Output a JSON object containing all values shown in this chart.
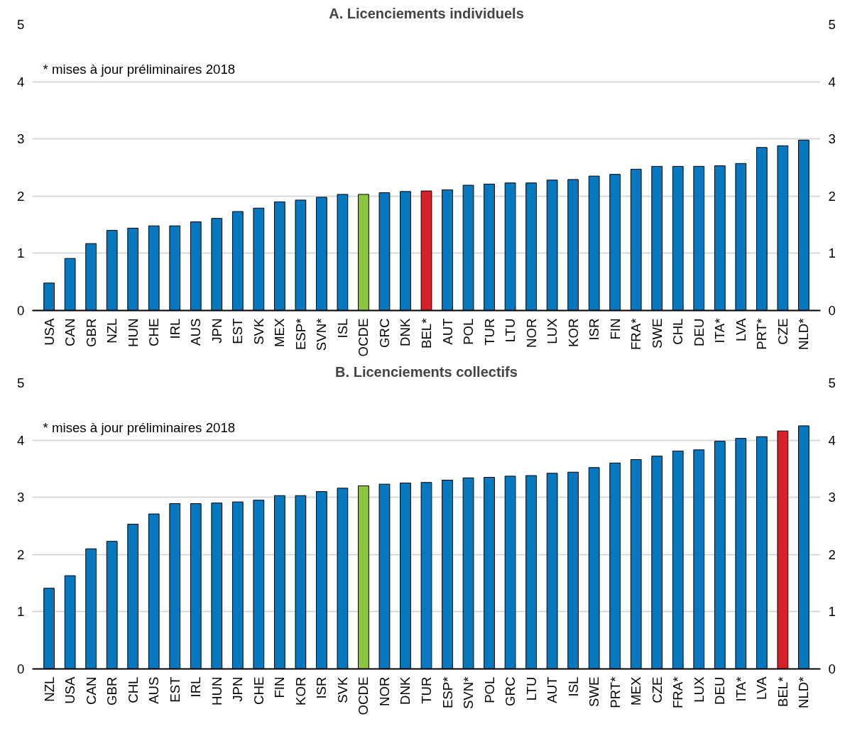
{
  "chart_data": [
    {
      "type": "bar",
      "title": "A. Licenciements individuels",
      "annotations": [
        "* mises à jour préliminaires 2018"
      ],
      "categories": [
        "USA",
        "CAN",
        "GBR",
        "NZL",
        "HUN",
        "CHE",
        "IRL",
        "AUS",
        "JPN",
        "EST",
        "SVK",
        "MEX",
        "ESP*",
        "SVN*",
        "ISL",
        "OCDE",
        "GRC",
        "DNK",
        "BEL*",
        "AUT",
        "POL",
        "TUR",
        "LTU",
        "NOR",
        "LUX",
        "KOR",
        "ISR",
        "FIN",
        "FRA*",
        "SWE",
        "CHL",
        "DEU",
        "ITA*",
        "LVA",
        "PRT*",
        "CZE",
        "NLD*"
      ],
      "values": [
        0.48,
        0.91,
        1.17,
        1.4,
        1.44,
        1.48,
        1.48,
        1.55,
        1.61,
        1.73,
        1.79,
        1.9,
        1.93,
        1.98,
        2.03,
        2.03,
        2.06,
        2.08,
        2.09,
        2.11,
        2.19,
        2.21,
        2.23,
        2.23,
        2.28,
        2.29,
        2.35,
        2.38,
        2.47,
        2.52,
        2.52,
        2.52,
        2.53,
        2.57,
        2.85,
        2.88,
        2.98
      ],
      "colors": [
        "#0678c0",
        "#0678c0",
        "#0678c0",
        "#0678c0",
        "#0678c0",
        "#0678c0",
        "#0678c0",
        "#0678c0",
        "#0678c0",
        "#0678c0",
        "#0678c0",
        "#0678c0",
        "#0678c0",
        "#0678c0",
        "#0678c0",
        "#8cc63f",
        "#0678c0",
        "#0678c0",
        "#d7212a",
        "#0678c0",
        "#0678c0",
        "#0678c0",
        "#0678c0",
        "#0678c0",
        "#0678c0",
        "#0678c0",
        "#0678c0",
        "#0678c0",
        "#0678c0",
        "#0678c0",
        "#0678c0",
        "#0678c0",
        "#0678c0",
        "#0678c0",
        "#0678c0",
        "#0678c0",
        "#0678c0"
      ],
      "ylim": [
        0,
        5
      ],
      "yticks": [
        0,
        1,
        2,
        3,
        4,
        5
      ],
      "y2lim": [
        0,
        5
      ],
      "y2ticks": [
        0,
        1,
        2,
        3,
        4,
        5
      ],
      "grid": "y"
    },
    {
      "type": "bar",
      "title": "B. Licenciements collectifs",
      "annotations": [
        "* mises à jour préliminaires 2018"
      ],
      "categories": [
        "NZL",
        "USA",
        "CAN",
        "GBR",
        "CHL",
        "AUS",
        "EST",
        "IRL",
        "HUN",
        "JPN",
        "CHE",
        "FIN",
        "KOR",
        "ISR",
        "SVK",
        "OCDE",
        "NOR",
        "DNK",
        "TUR",
        "ESP*",
        "SVN*",
        "POL",
        "GRC",
        "LTU",
        "AUT",
        "ISL",
        "SWE",
        "PRT*",
        "MEX",
        "CZE",
        "FRA*",
        "LUX",
        "DEU",
        "ITA*",
        "LVA",
        "BEL*",
        "NLD*"
      ],
      "values": [
        1.41,
        1.63,
        2.1,
        2.23,
        2.53,
        2.71,
        2.89,
        2.89,
        2.9,
        2.92,
        2.95,
        3.03,
        3.03,
        3.1,
        3.16,
        3.2,
        3.23,
        3.25,
        3.26,
        3.3,
        3.34,
        3.35,
        3.37,
        3.38,
        3.42,
        3.44,
        3.52,
        3.6,
        3.66,
        3.72,
        3.81,
        3.83,
        3.98,
        4.03,
        4.06,
        4.16,
        4.25
      ],
      "colors": [
        "#0678c0",
        "#0678c0",
        "#0678c0",
        "#0678c0",
        "#0678c0",
        "#0678c0",
        "#0678c0",
        "#0678c0",
        "#0678c0",
        "#0678c0",
        "#0678c0",
        "#0678c0",
        "#0678c0",
        "#0678c0",
        "#0678c0",
        "#8cc63f",
        "#0678c0",
        "#0678c0",
        "#0678c0",
        "#0678c0",
        "#0678c0",
        "#0678c0",
        "#0678c0",
        "#0678c0",
        "#0678c0",
        "#0678c0",
        "#0678c0",
        "#0678c0",
        "#0678c0",
        "#0678c0",
        "#0678c0",
        "#0678c0",
        "#0678c0",
        "#0678c0",
        "#0678c0",
        "#d7212a",
        "#0678c0"
      ],
      "ylim": [
        0,
        5
      ],
      "yticks": [
        0,
        1,
        2,
        3,
        4,
        5
      ],
      "y2lim": [
        0,
        5
      ],
      "y2ticks": [
        0,
        1,
        2,
        3,
        4,
        5
      ],
      "grid": "y"
    }
  ]
}
